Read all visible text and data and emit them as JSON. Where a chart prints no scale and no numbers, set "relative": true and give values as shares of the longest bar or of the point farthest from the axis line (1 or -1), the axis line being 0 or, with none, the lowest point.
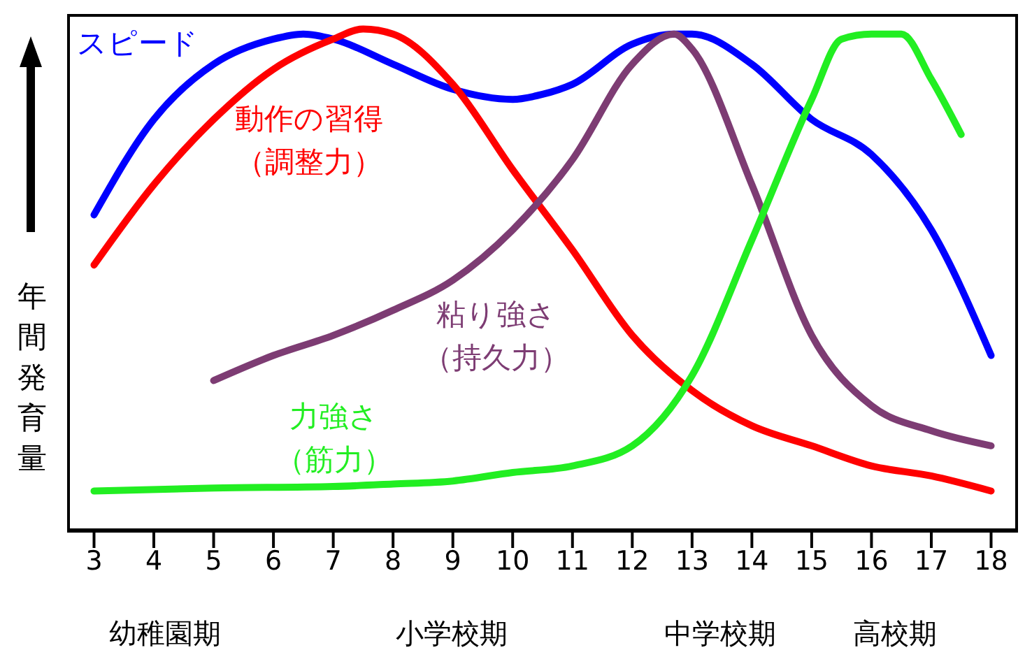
{
  "chart_data": {
    "type": "line",
    "relative": true,
    "ylabel": "年間発育量",
    "xlim": [
      2.55,
      18.45
    ],
    "xticks": [
      3,
      4,
      5,
      6,
      7,
      8,
      9,
      10,
      11,
      12,
      13,
      14,
      15,
      16,
      17,
      18
    ],
    "annotations": [
      "幼稚園期",
      "小学校期",
      "中学校期",
      "高校期"
    ],
    "series": [
      {
        "name": "スピード",
        "color": "#0000ff",
        "x": [
          3,
          4,
          5,
          6,
          6.5,
          7,
          8,
          9,
          10,
          10.5,
          11,
          12,
          12.7,
          13,
          14,
          15,
          16,
          17,
          18
        ],
        "values": [
          0.63,
          0.82,
          0.93,
          0.98,
          0.99,
          0.98,
          0.93,
          0.88,
          0.86,
          0.87,
          0.89,
          0.97,
          0.99,
          0.99,
          0.93,
          0.82,
          0.75,
          0.6,
          0.35
        ]
      },
      {
        "name": "動作の習得（調整力）",
        "color": "#ff0000",
        "x": [
          3,
          4,
          5,
          6,
          7,
          7.5,
          8,
          9,
          10,
          11,
          12,
          13,
          14,
          15,
          16,
          17,
          18
        ],
        "values": [
          0.53,
          0.69,
          0.82,
          0.92,
          0.98,
          1,
          0.99,
          0.89,
          0.72,
          0.56,
          0.39,
          0.28,
          0.21,
          0.17,
          0.13,
          0.11,
          0.08
        ]
      },
      {
        "name": "粘り強さ（持久力）",
        "color": "#7d3c73",
        "x": [
          5,
          6,
          7,
          8,
          9,
          10,
          11,
          12,
          12.7,
          13,
          14,
          15,
          16,
          17,
          18
        ],
        "values": [
          0.3,
          0.35,
          0.39,
          0.44,
          0.5,
          0.6,
          0.74,
          0.93,
          0.99,
          0.96,
          0.69,
          0.39,
          0.25,
          0.2,
          0.17
        ]
      },
      {
        "name": "力強さ（筋力）",
        "color": "#22ee22",
        "x": [
          3,
          5,
          7,
          8,
          9,
          10,
          11,
          12,
          13,
          14,
          15,
          15.5,
          16,
          16.5,
          17,
          17.5
        ],
        "values": [
          0.08,
          0.086,
          0.089,
          0.094,
          0.1,
          0.117,
          0.13,
          0.17,
          0.31,
          0.58,
          0.86,
          0.98,
          0.99,
          0.99,
          0.9,
          0.79
        ]
      }
    ]
  }
}
